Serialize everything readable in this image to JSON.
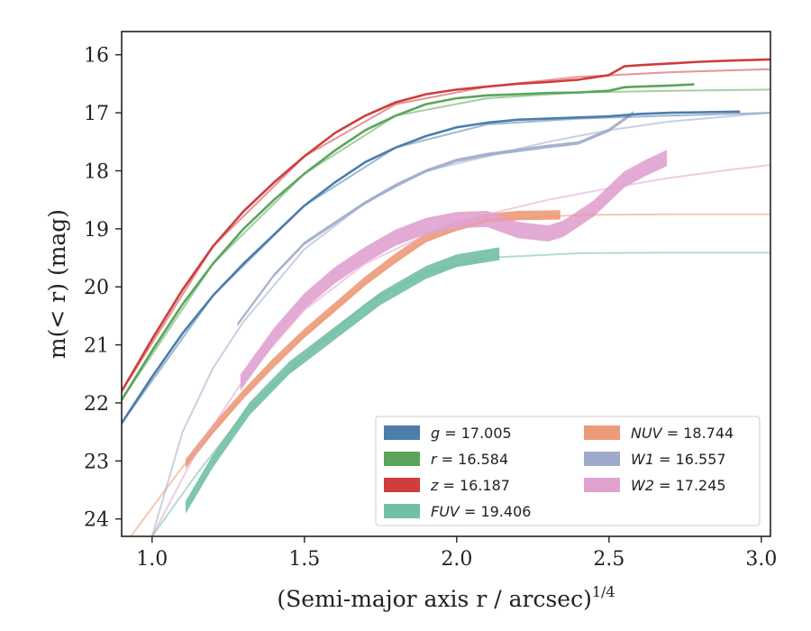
{
  "chart_data": {
    "type": "line",
    "xlabel": "(Semi-major axis r / arcsec)",
    "xlabel_sup": "1/4",
    "ylabel": "m(< r) (mag)",
    "xlim": [
      0.9,
      3.03
    ],
    "ylim": [
      24.3,
      15.6
    ],
    "y_inverted": true,
    "grid": false,
    "legend_placement": "lower-right",
    "x_ticks": [
      "1.0",
      "1.5",
      "2.0",
      "2.5",
      "3.0"
    ],
    "y_ticks": [
      "16",
      "17",
      "18",
      "19",
      "20",
      "21",
      "22",
      "23",
      "24"
    ],
    "series": [
      {
        "name": "g",
        "value": "17.005",
        "color": "#4c7dab",
        "band_width": 0.03,
        "x": [
          0.9,
          1.0,
          1.1,
          1.2,
          1.3,
          1.4,
          1.5,
          1.6,
          1.7,
          1.8,
          1.9,
          2.0,
          2.1,
          2.2,
          2.3,
          2.4,
          2.5,
          2.6,
          2.7,
          2.8,
          2.93
        ],
        "y": [
          22.35,
          21.55,
          20.8,
          20.15,
          19.6,
          19.1,
          18.6,
          18.2,
          17.85,
          17.6,
          17.4,
          17.25,
          17.17,
          17.12,
          17.1,
          17.08,
          17.06,
          17.02,
          17.0,
          16.99,
          16.98
        ],
        "model_x": [
          0.9,
          1.2,
          1.5,
          1.8,
          2.1,
          2.4,
          2.7,
          3.03
        ],
        "model_y": [
          22.35,
          20.15,
          18.6,
          17.6,
          17.2,
          17.1,
          17.05,
          17.0
        ]
      },
      {
        "name": "r",
        "value": "16.584",
        "color": "#5aa55a",
        "band_width": 0.03,
        "x": [
          0.9,
          1.0,
          1.1,
          1.2,
          1.3,
          1.4,
          1.5,
          1.6,
          1.7,
          1.8,
          1.9,
          2.0,
          2.1,
          2.2,
          2.3,
          2.4,
          2.5,
          2.55,
          2.6,
          2.7,
          2.78
        ],
        "y": [
          21.95,
          21.1,
          20.3,
          19.6,
          19.0,
          18.5,
          18.05,
          17.65,
          17.3,
          17.05,
          16.85,
          16.75,
          16.7,
          16.68,
          16.66,
          16.65,
          16.62,
          16.56,
          16.55,
          16.53,
          16.51
        ],
        "model_x": [
          0.9,
          1.2,
          1.5,
          1.8,
          2.1,
          2.4,
          2.7,
          3.03
        ],
        "model_y": [
          21.95,
          19.6,
          18.05,
          17.05,
          16.75,
          16.65,
          16.62,
          16.6
        ]
      },
      {
        "name": "z",
        "value": "16.187",
        "color": "#cf3d3d",
        "band_width": 0.04,
        "x": [
          0.9,
          1.0,
          1.1,
          1.2,
          1.3,
          1.4,
          1.5,
          1.6,
          1.7,
          1.8,
          1.9,
          2.0,
          2.1,
          2.2,
          2.3,
          2.4,
          2.5,
          2.55,
          2.6,
          2.7,
          2.8,
          2.9,
          3.03
        ],
        "y": [
          21.8,
          20.9,
          20.05,
          19.3,
          18.7,
          18.2,
          17.75,
          17.35,
          17.05,
          16.82,
          16.68,
          16.6,
          16.55,
          16.5,
          16.47,
          16.43,
          16.35,
          16.2,
          16.18,
          16.15,
          16.12,
          16.1,
          16.08
        ],
        "model_x": [
          0.9,
          1.2,
          1.5,
          1.8,
          2.1,
          2.4,
          2.7,
          3.03
        ],
        "model_y": [
          21.8,
          19.3,
          17.75,
          16.85,
          16.55,
          16.38,
          16.3,
          16.25
        ]
      },
      {
        "name": "FUV",
        "value": "19.406",
        "color": "#72bfa4",
        "band_width": 0.22,
        "x": [
          1.11,
          1.2,
          1.32,
          1.45,
          1.6,
          1.75,
          1.9,
          2.0,
          2.14
        ],
        "y": [
          23.8,
          23.0,
          22.1,
          21.4,
          20.8,
          20.2,
          19.75,
          19.55,
          19.43
        ],
        "model_x": [
          1.0,
          1.15,
          1.3,
          1.5,
          1.7,
          1.9,
          2.1,
          2.4,
          2.7,
          3.03
        ],
        "model_y": [
          24.3,
          23.2,
          22.2,
          21.2,
          20.3,
          19.75,
          19.5,
          19.42,
          19.41,
          19.41
        ]
      },
      {
        "name": "NUV",
        "value": "18.744",
        "color": "#ed9a79",
        "band_width": 0.16,
        "x": [
          1.11,
          1.2,
          1.3,
          1.4,
          1.5,
          1.6,
          1.7,
          1.8,
          1.9,
          2.0,
          2.1,
          2.2,
          2.34
        ],
        "y": [
          23.05,
          22.45,
          21.85,
          21.3,
          20.8,
          20.35,
          19.9,
          19.5,
          19.15,
          18.95,
          18.82,
          18.77,
          18.76
        ],
        "model_x": [
          0.93,
          1.1,
          1.3,
          1.5,
          1.7,
          1.9,
          2.1,
          2.4,
          2.7,
          3.03
        ],
        "model_y": [
          24.3,
          23.1,
          21.9,
          20.85,
          19.95,
          19.2,
          18.85,
          18.76,
          18.75,
          18.75
        ]
      },
      {
        "name": "W1",
        "value": "16.557",
        "color": "#9daac9",
        "band_width": 0.06,
        "x": [
          1.28,
          1.4,
          1.5,
          1.6,
          1.7,
          1.8,
          1.9,
          2.0,
          2.1,
          2.2,
          2.3,
          2.4,
          2.5,
          2.58
        ],
        "y": [
          20.65,
          19.8,
          19.25,
          18.9,
          18.55,
          18.25,
          18.0,
          17.82,
          17.72,
          17.65,
          17.58,
          17.52,
          17.3,
          17.0
        ],
        "model_x": [
          1.0,
          1.1,
          1.2,
          1.3,
          1.5,
          1.7,
          1.9,
          2.1,
          2.3,
          2.5,
          2.7,
          3.03
        ],
        "model_y": [
          24.3,
          22.5,
          21.4,
          20.6,
          19.35,
          18.55,
          18.0,
          17.75,
          17.5,
          17.3,
          17.15,
          17.0
        ]
      },
      {
        "name": "W2",
        "value": "17.245",
        "color": "#e0a2cf",
        "band_width": 0.28,
        "x": [
          1.29,
          1.4,
          1.5,
          1.6,
          1.7,
          1.8,
          1.9,
          2.0,
          2.1,
          2.2,
          2.3,
          2.35,
          2.45,
          2.55,
          2.62,
          2.69
        ],
        "y": [
          21.65,
          20.85,
          20.25,
          19.8,
          19.45,
          19.15,
          18.95,
          18.85,
          18.83,
          19.02,
          19.08,
          19.0,
          18.65,
          18.15,
          17.95,
          17.78
        ],
        "model_x": [
          1.0,
          1.15,
          1.3,
          1.5,
          1.7,
          1.9,
          2.1,
          2.3,
          2.5,
          2.7,
          2.9,
          3.03
        ],
        "model_y": [
          24.3,
          22.8,
          21.6,
          20.4,
          19.6,
          19.1,
          18.75,
          18.5,
          18.3,
          18.12,
          17.98,
          17.9
        ]
      }
    ]
  }
}
